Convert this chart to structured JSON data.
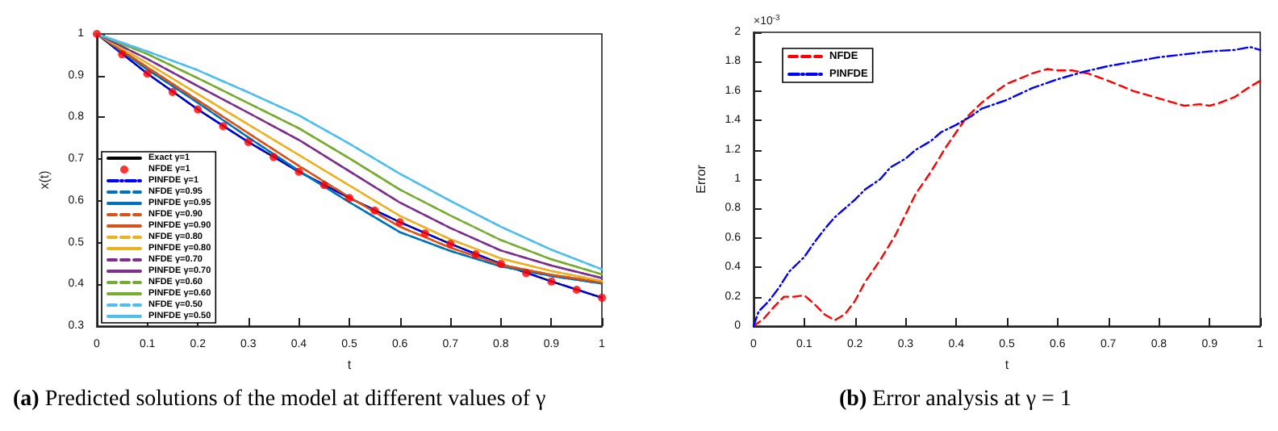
{
  "chart_data": [
    {
      "type": "line",
      "title": "(a) Predicted solutions of the model at different values of γ",
      "xlabel": "t",
      "ylabel": "x(t)",
      "x": [
        0,
        0.1,
        0.2,
        0.3,
        0.4,
        0.5,
        0.6,
        0.7,
        0.8,
        0.9,
        1
      ],
      "xlim": [
        0,
        1
      ],
      "xticks": [
        0,
        0.1,
        0.2,
        0.3,
        0.4,
        0.5,
        0.6,
        0.7,
        0.8,
        0.9,
        1
      ],
      "ylim": [
        0.3,
        1
      ],
      "yticks": [
        0.3,
        0.4,
        0.5,
        0.6,
        0.7,
        0.8,
        0.9,
        1
      ],
      "grid": false,
      "legend": "bottom left",
      "series": [
        {
          "name": "Exact γ=1",
          "color": "#000000",
          "line_style": "solid",
          "values": [
            1,
            0.905,
            0.819,
            0.741,
            0.67,
            0.607,
            0.549,
            0.497,
            0.449,
            0.407,
            0.368
          ]
        },
        {
          "name": "NFDE γ=1",
          "type": "scatter",
          "marker": "circle",
          "color": "#ff0000",
          "x": [
            0,
            0.05,
            0.1,
            0.15,
            0.2,
            0.25,
            0.3,
            0.35,
            0.4,
            0.45,
            0.5,
            0.55,
            0.6,
            0.65,
            0.7,
            0.75,
            0.8,
            0.85,
            0.9,
            0.95,
            1
          ],
          "values": [
            1,
            0.951,
            0.905,
            0.861,
            0.819,
            0.779,
            0.741,
            0.705,
            0.67,
            0.638,
            0.607,
            0.577,
            0.549,
            0.522,
            0.497,
            0.472,
            0.449,
            0.427,
            0.407,
            0.387,
            0.368
          ]
        },
        {
          "name": "PINFDE γ=1",
          "color": "#0000ff",
          "line_style": "dashdot",
          "values": [
            1,
            0.905,
            0.819,
            0.741,
            0.67,
            0.607,
            0.549,
            0.497,
            0.449,
            0.407,
            0.368
          ]
        },
        {
          "name": "NFDE γ=0.95",
          "color": "#0072bd",
          "line_style": "dashed",
          "values": [
            1,
            0.915,
            0.835,
            0.752,
            0.672,
            0.597,
            0.525,
            0.48,
            0.443,
            0.42,
            0.402
          ]
        },
        {
          "name": "PINFDE γ=0.95",
          "color": "#0072bd",
          "line_style": "solid",
          "values": [
            1,
            0.915,
            0.835,
            0.752,
            0.672,
            0.597,
            0.525,
            0.48,
            0.443,
            0.42,
            0.402
          ]
        },
        {
          "name": "NFDE γ=0.90",
          "color": "#d95319",
          "line_style": "dashed",
          "values": [
            1,
            0.92,
            0.841,
            0.762,
            0.684,
            0.609,
            0.538,
            0.488,
            0.447,
            0.423,
            0.405
          ]
        },
        {
          "name": "PINFDE γ=0.90",
          "color": "#d95319",
          "line_style": "solid",
          "values": [
            1,
            0.92,
            0.841,
            0.762,
            0.684,
            0.609,
            0.538,
            0.488,
            0.447,
            0.423,
            0.405
          ]
        },
        {
          "name": "NFDE γ=0.80",
          "color": "#edb120",
          "line_style": "dashed",
          "values": [
            1,
            0.93,
            0.856,
            0.783,
            0.71,
            0.637,
            0.564,
            0.508,
            0.462,
            0.432,
            0.408
          ]
        },
        {
          "name": "PINFDE γ=0.80",
          "color": "#edb120",
          "line_style": "solid",
          "values": [
            1,
            0.93,
            0.856,
            0.783,
            0.71,
            0.637,
            0.564,
            0.508,
            0.462,
            0.432,
            0.408
          ]
        },
        {
          "name": "NFDE γ=0.70",
          "color": "#7e2f8e",
          "line_style": "dashed",
          "values": [
            1,
            0.94,
            0.875,
            0.811,
            0.746,
            0.671,
            0.596,
            0.535,
            0.481,
            0.445,
            0.415
          ]
        },
        {
          "name": "PINFDE γ=0.70",
          "color": "#7e2f8e",
          "line_style": "solid",
          "values": [
            1,
            0.94,
            0.875,
            0.811,
            0.746,
            0.671,
            0.596,
            0.535,
            0.481,
            0.445,
            0.415
          ]
        },
        {
          "name": "NFDE γ=0.60",
          "color": "#77ac30",
          "line_style": "dashed",
          "values": [
            1,
            0.952,
            0.894,
            0.834,
            0.774,
            0.702,
            0.627,
            0.565,
            0.506,
            0.46,
            0.424
          ]
        },
        {
          "name": "PINFDE γ=0.60",
          "color": "#77ac30",
          "line_style": "solid",
          "values": [
            1,
            0.952,
            0.894,
            0.834,
            0.774,
            0.702,
            0.627,
            0.565,
            0.506,
            0.46,
            0.424
          ]
        },
        {
          "name": "NFDE γ=0.50",
          "color": "#4dbeee",
          "line_style": "dashed",
          "values": [
            1,
            0.958,
            0.913,
            0.86,
            0.805,
            0.737,
            0.665,
            0.6,
            0.538,
            0.483,
            0.436
          ]
        },
        {
          "name": "PINFDE γ=0.50",
          "color": "#4dbeee",
          "line_style": "solid",
          "values": [
            1,
            0.958,
            0.913,
            0.86,
            0.805,
            0.737,
            0.665,
            0.6,
            0.538,
            0.483,
            0.436
          ]
        }
      ]
    },
    {
      "type": "line",
      "title": "(b) Error analysis at γ = 1",
      "xlabel": "t",
      "ylabel": "Error",
      "annotations": [
        "×10$^{-3}$"
      ],
      "xlim": [
        0,
        1
      ],
      "xticks": [
        0,
        0.1,
        0.2,
        0.3,
        0.4,
        0.5,
        0.6,
        0.7,
        0.8,
        0.9,
        1
      ],
      "ylim": [
        0,
        2
      ],
      "yticks": [
        0,
        0.2,
        0.4,
        0.6,
        0.8,
        1,
        1.2,
        1.4,
        1.6,
        1.8,
        2
      ],
      "grid": false,
      "legend": "top left",
      "series": [
        {
          "name": "NFDE",
          "color": "#ff0000",
          "line_style": "dashed",
          "x": [
            0,
            0.02,
            0.04,
            0.06,
            0.08,
            0.1,
            0.12,
            0.14,
            0.16,
            0.18,
            0.2,
            0.22,
            0.25,
            0.28,
            0.3,
            0.32,
            0.35,
            0.38,
            0.4,
            0.42,
            0.45,
            0.48,
            0.5,
            0.55,
            0.58,
            0.6,
            0.63,
            0.66,
            0.7,
            0.75,
            0.8,
            0.85,
            0.88,
            0.9,
            0.92,
            0.95,
            0.98,
            1
          ],
          "values": [
            0,
            0.05,
            0.13,
            0.2,
            0.2,
            0.21,
            0.15,
            0.08,
            0.04,
            0.08,
            0.17,
            0.3,
            0.45,
            0.62,
            0.76,
            0.9,
            1.05,
            1.22,
            1.32,
            1.42,
            1.52,
            1.6,
            1.65,
            1.72,
            1.75,
            1.74,
            1.74,
            1.72,
            1.67,
            1.6,
            1.55,
            1.5,
            1.51,
            1.5,
            1.52,
            1.56,
            1.63,
            1.67
          ]
        },
        {
          "name": "PINFDE",
          "color": "#0000ff",
          "line_style": "dashdot",
          "x": [
            0,
            0.01,
            0.03,
            0.05,
            0.07,
            0.1,
            0.12,
            0.14,
            0.16,
            0.2,
            0.22,
            0.25,
            0.27,
            0.3,
            0.32,
            0.35,
            0.37,
            0.4,
            0.43,
            0.45,
            0.5,
            0.55,
            0.6,
            0.65,
            0.7,
            0.75,
            0.8,
            0.85,
            0.9,
            0.95,
            0.98,
            1
          ],
          "values": [
            0,
            0.1,
            0.17,
            0.26,
            0.37,
            0.47,
            0.57,
            0.66,
            0.74,
            0.86,
            0.93,
            1.0,
            1.08,
            1.14,
            1.2,
            1.26,
            1.32,
            1.37,
            1.43,
            1.48,
            1.54,
            1.62,
            1.68,
            1.73,
            1.77,
            1.8,
            1.83,
            1.85,
            1.87,
            1.88,
            1.9,
            1.88
          ]
        }
      ]
    }
  ]
}
